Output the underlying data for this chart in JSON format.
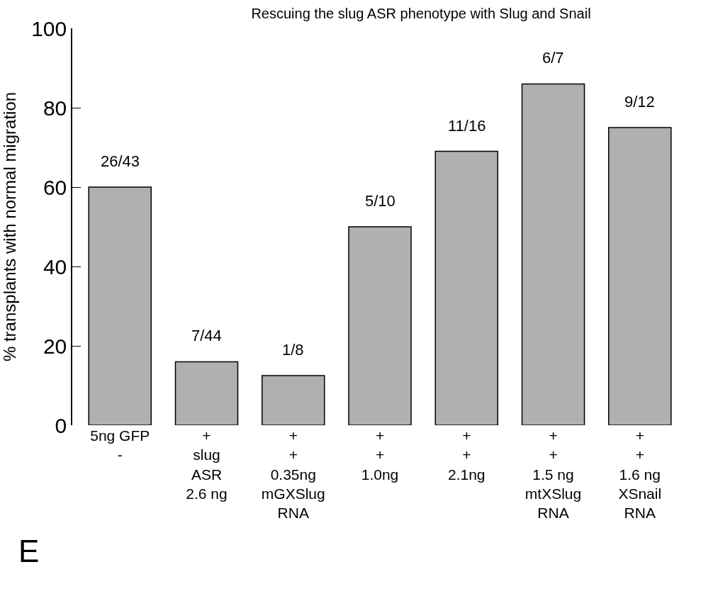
{
  "chart_data": {
    "type": "bar",
    "title": "Rescuing the slug ASR phenotype with Slug and Snail",
    "ylabel": "% transplants with normal migration",
    "categories": [
      "5ng GFP\n-",
      "+\nslug\nASR\n2.6 ng",
      "+\n+\n0.35ng\nmGXSlug\nRNA",
      "+\n+\n1.0ng",
      "+\n+\n2.1ng",
      "+\n+\n1.5 ng\nmtXSlug\nRNA",
      "+\n+\n1.6 ng\nXSnail\nRNA"
    ],
    "values": [
      60,
      16,
      12.5,
      50,
      69,
      86,
      75
    ],
    "color": "#b0b0b0",
    "ylim": [
      0,
      100
    ],
    "yticks": [
      0,
      20,
      40,
      60,
      80,
      100
    ],
    "annotations": [
      {
        "text": "26/43",
        "x": "5ng GFP\n-",
        "y": 60
      },
      {
        "text": "7/44",
        "x": "+\nslug\nASR\n2.6 ng",
        "y": 16
      },
      {
        "text": "1/8",
        "x": "+\n+\n0.35ng\nmGXSlug\nRNA",
        "y": 12.5
      },
      {
        "text": "5/10",
        "x": "+\n+\n1.0ng",
        "y": 50
      },
      {
        "text": "11/16",
        "x": "+\n+\n2.1ng",
        "y": 69
      },
      {
        "text": "6/7",
        "x": "+\n+\n1.5 ng\nmtXSlug\nRNA",
        "y": 86
      },
      {
        "text": "9/12",
        "x": "+\n+\n1.6 ng\nXSnail\nRNA",
        "y": 75
      },
      "E"
    ]
  }
}
